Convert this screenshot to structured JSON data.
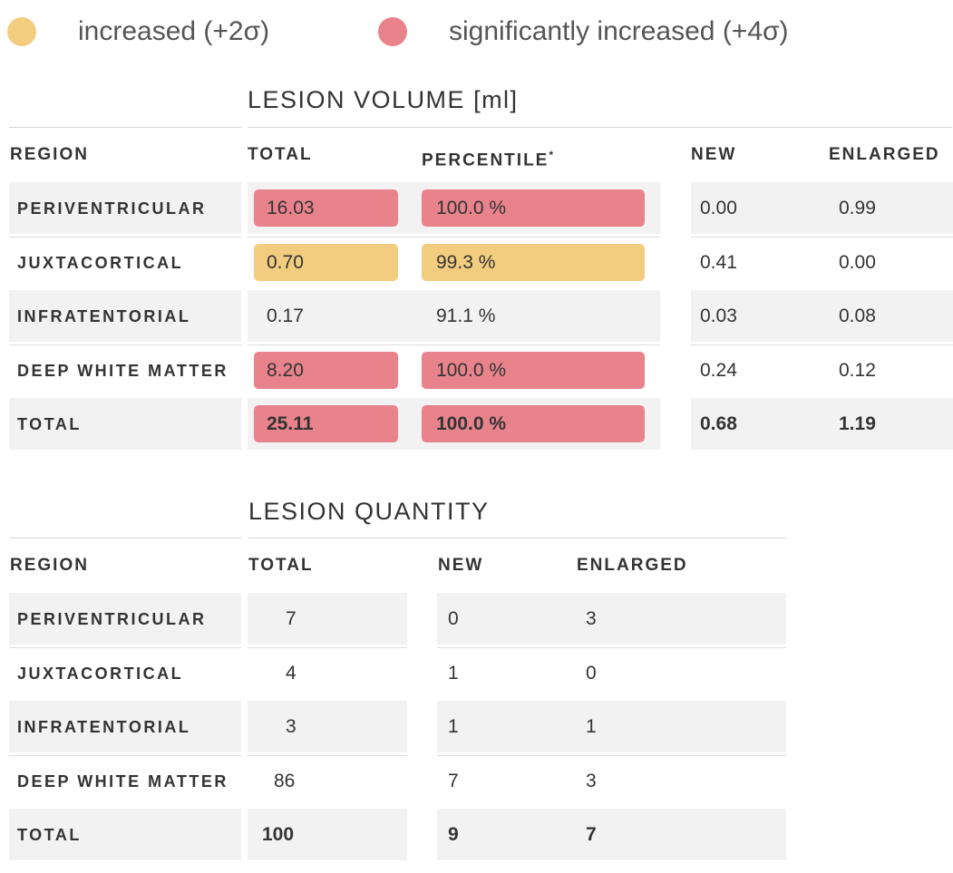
{
  "colors": {
    "increased": "#f3cd7f",
    "significantly_increased": "#e8838c"
  },
  "legend": {
    "increased": "increased (+2σ)",
    "significantly_increased": "significantly increased (+4σ)"
  },
  "volume": {
    "title": "LESION VOLUME [ml]",
    "headers": {
      "region": "REGION",
      "total": "TOTAL",
      "percentile": "PERCENTILE",
      "percentile_mark": "*",
      "new": "NEW",
      "enlarged": "ENLARGED"
    },
    "rows": [
      {
        "region": "PERIVENTRICULAR",
        "total": "16.03",
        "percentile": "100.0 %",
        "new": "0.00",
        "enlarged": "0.99",
        "level": "significantly_increased"
      },
      {
        "region": "JUXTACORTICAL",
        "total": "0.70",
        "percentile": "99.3 %",
        "new": "0.41",
        "enlarged": "0.00",
        "level": "increased"
      },
      {
        "region": "INFRATENTORIAL",
        "total": "0.17",
        "percentile": "91.1 %",
        "new": "0.03",
        "enlarged": "0.08",
        "level": "normal"
      },
      {
        "region": "DEEP WHITE MATTER",
        "total": "8.20",
        "percentile": "100.0 %",
        "new": "0.24",
        "enlarged": "0.12",
        "level": "significantly_increased"
      },
      {
        "region": "TOTAL",
        "total": "25.11",
        "percentile": "100.0 %",
        "new": "0.68",
        "enlarged": "1.19",
        "level": "significantly_increased"
      }
    ]
  },
  "quantity": {
    "title": "LESION QUANTITY",
    "headers": {
      "region": "REGION",
      "total": "TOTAL",
      "new": "NEW",
      "enlarged": "ENLARGED"
    },
    "rows": [
      {
        "region": "PERIVENTRICULAR",
        "total": "7",
        "new": "0",
        "enlarged": "3"
      },
      {
        "region": "JUXTACORTICAL",
        "total": "4",
        "new": "1",
        "enlarged": "0"
      },
      {
        "region": "INFRATENTORIAL",
        "total": "3",
        "new": "1",
        "enlarged": "1"
      },
      {
        "region": "DEEP WHITE MATTER",
        "total": "86",
        "new": "7",
        "enlarged": "3"
      },
      {
        "region": "TOTAL",
        "total": "100",
        "new": "9",
        "enlarged": "7"
      }
    ]
  }
}
